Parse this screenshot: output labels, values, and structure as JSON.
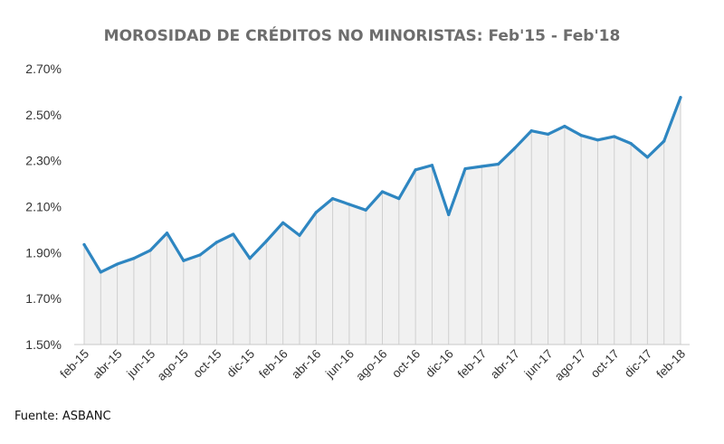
{
  "chart_data": {
    "type": "area",
    "title": "MOROSIDAD DE CRÉDITOS NO MINORISTAS: Feb'15 - Feb'18",
    "xlabel": "",
    "ylabel": "",
    "ylim": [
      1.5,
      2.7
    ],
    "yticks": [
      "2.70%",
      "2.50%",
      "2.30%",
      "2.10%",
      "1.90%",
      "1.70%",
      "1.50%"
    ],
    "ytick_values": [
      2.7,
      2.5,
      2.3,
      2.1,
      1.9,
      1.7,
      1.5
    ],
    "grid": false,
    "legend": "none",
    "x_labels": [
      "feb-15",
      "abr-15",
      "jun-15",
      "ago-15",
      "oct-15",
      "dic-15",
      "feb-16",
      "abr-16",
      "jun-16",
      "ago-16",
      "oct-16",
      "dic-16",
      "feb-17",
      "abr-17",
      "jun-17",
      "ago-17",
      "oct-17",
      "dic-17",
      "feb-18"
    ],
    "x": [
      "feb-15",
      "mar-15",
      "abr-15",
      "may-15",
      "jun-15",
      "jul-15",
      "ago-15",
      "sep-15",
      "oct-15",
      "nov-15",
      "dic-15",
      "ene-16",
      "feb-16",
      "mar-16",
      "abr-16",
      "may-16",
      "jun-16",
      "jul-16",
      "ago-16",
      "sep-16",
      "oct-16",
      "nov-16",
      "dic-16",
      "ene-17",
      "feb-17",
      "mar-17",
      "abr-17",
      "may-17",
      "jun-17",
      "jul-17",
      "ago-17",
      "sep-17",
      "oct-17",
      "nov-17",
      "dic-17",
      "ene-18",
      "feb-18"
    ],
    "series": [
      {
        "values": [
          1.935,
          1.815,
          1.85,
          1.875,
          1.91,
          1.985,
          1.865,
          1.89,
          1.945,
          1.98,
          1.875,
          1.95,
          2.03,
          1.975,
          2.075,
          2.135,
          2.11,
          2.085,
          2.165,
          2.135,
          2.26,
          2.28,
          2.065,
          2.265,
          2.275,
          2.285,
          2.355,
          2.43,
          2.415,
          2.45,
          2.41,
          2.39,
          2.405,
          2.375,
          2.315,
          2.385,
          2.575
        ],
        "color": "#2e86c1"
      }
    ],
    "colors": {
      "line": "#2e86c1",
      "fill": "#f1f1f1",
      "dropline": "#cfcfcf",
      "axis": "#c8c8c8"
    }
  },
  "source": "Fuente: ASBANC"
}
